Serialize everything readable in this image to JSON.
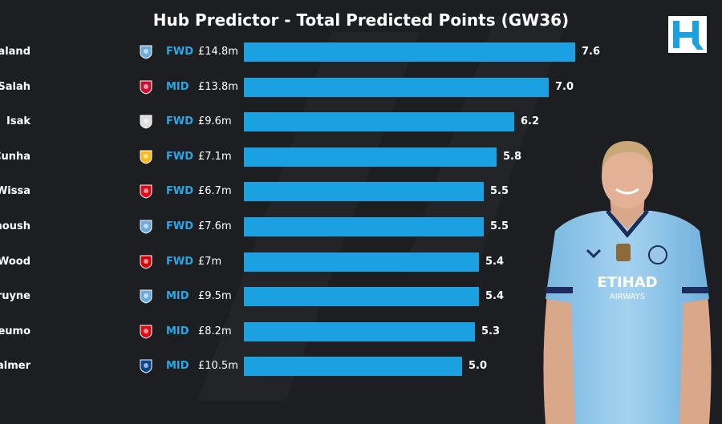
{
  "title": "Hub Predictor - Total Predicted Points (GW36)",
  "logo_text": "H",
  "colors": {
    "bar": "#1ba0e2",
    "position": "#29a8e8",
    "background": "#1d1e22"
  },
  "chart_data": {
    "type": "bar",
    "orientation": "horizontal",
    "title": "Hub Predictor - Total Predicted Points (GW36)",
    "categories": [
      "Haaland",
      "M.Salah",
      "Isak",
      "Cunha",
      "Wissa",
      "Marmoush",
      "Wood",
      "De Bruyne",
      "Mbeumo",
      "Palmer"
    ],
    "values": [
      7.6,
      7.0,
      6.2,
      5.8,
      5.5,
      5.5,
      5.4,
      5.4,
      5.3,
      5.0
    ],
    "value_labels": [
      "7.6",
      "7.0",
      "6.2",
      "5.8",
      "5.5",
      "5.5",
      "5.4",
      "5.4",
      "5.3",
      "5.0"
    ],
    "positions": [
      "FWD",
      "MID",
      "FWD",
      "FWD",
      "FWD",
      "FWD",
      "FWD",
      "MID",
      "MID",
      "MID"
    ],
    "prices": [
      "£14.8m",
      "£13.8m",
      "£9.6m",
      "£7.1m",
      "£6.7m",
      "£7.6m",
      "£7m",
      "£9.5m",
      "£8.2m",
      "£10.5m"
    ],
    "club_icons": [
      "man-city-crest-icon",
      "liverpool-crest-icon",
      "newcastle-crest-icon",
      "wolves-crest-icon",
      "brentford-crest-icon",
      "man-city-crest-icon",
      "nottm-forest-crest-icon",
      "man-city-crest-icon",
      "brentford-crest-icon",
      "chelsea-crest-icon"
    ],
    "xlim": [
      0,
      7.6
    ],
    "grid": false,
    "legend": "none"
  },
  "crest_colors": {
    "man-city-crest-icon": "#6cabdd",
    "liverpool-crest-icon": "#c8102e",
    "newcastle-crest-icon": "#dddddd",
    "wolves-crest-icon": "#fdb913",
    "brentford-crest-icon": "#e30613",
    "nottm-forest-crest-icon": "#dd0000",
    "chelsea-crest-icon": "#034694"
  },
  "shirt": {
    "sponsor": "ETIHAD",
    "sponsor_sub": "AIRWAYS"
  }
}
